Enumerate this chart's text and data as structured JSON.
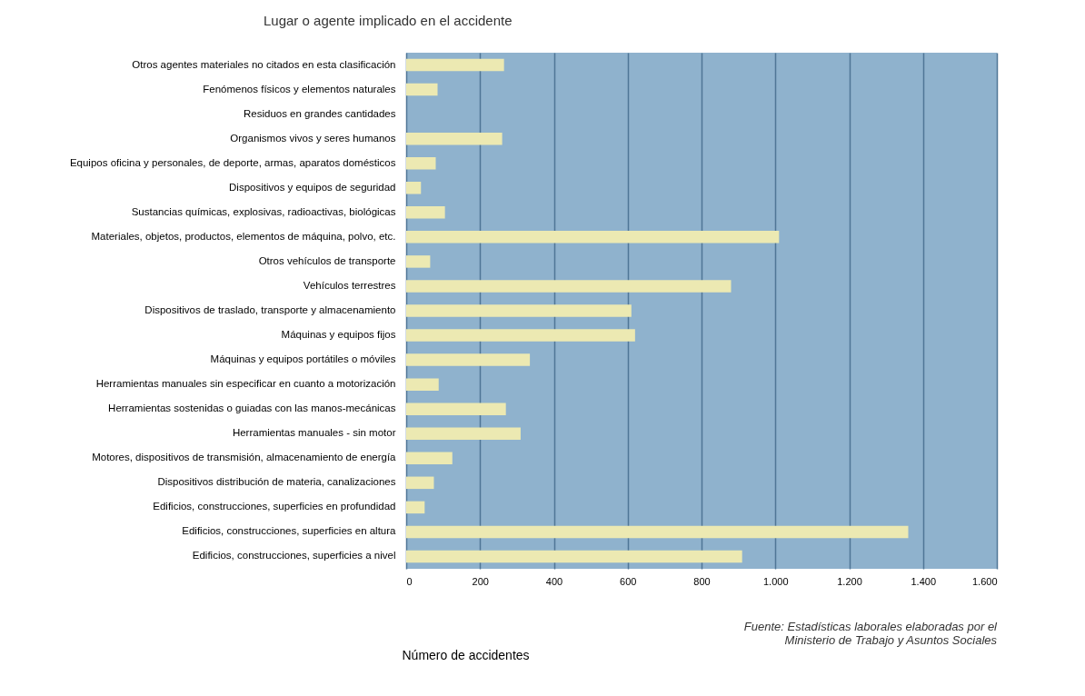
{
  "chart_data": {
    "type": "bar",
    "orientation": "horizontal",
    "title": "Lugar o agente implicado en el accidente",
    "xlabel": "Número de accidentes",
    "categories": [
      "Otros agentes materiales no citados en esta clasificación",
      "Fenómenos físicos y elementos naturales",
      "Residuos en grandes cantidades",
      "Organismos vivos y seres humanos",
      "Equipos oficina y personales, de deporte, armas, aparatos domésticos",
      "Dispositivos y equipos de seguridad",
      "Sustancias químicas, explosivas, radioactivas, biológicas",
      "Materiales, objetos, productos, elementos de máquina, polvo, etc.",
      "Otros vehículos de transporte",
      "Vehículos terrestres",
      "Dispositivos de traslado, transporte y almacenamiento",
      "Máquinas y equipos fijos",
      "Máquinas y equipos portátiles o móviles",
      "Herramientas manuales sin especificar en cuanto a motorización",
      "Herramientas sostenidas o guiadas con las manos-mecánicas",
      "Herramientas manuales - sin motor",
      "Motores, dispositivos de transmisión, almacenamiento de energía",
      "Dispositivos distribución de materia, canalizaciones",
      "Edificios, construcciones, superficies en profundidad",
      "Edificios, construcciones, superficies en altura",
      "Edificios, construcciones, superficies a nivel"
    ],
    "values": [
      265,
      85,
      null,
      260,
      80,
      40,
      105,
      1010,
      65,
      880,
      610,
      620,
      335,
      88,
      270,
      310,
      125,
      75,
      50,
      1360,
      910
    ],
    "color": "#ece9b2",
    "xlim": [
      0,
      1600
    ],
    "xticks": [
      0,
      200,
      400,
      600,
      800,
      {
        "value": 1000,
        "label": "1.000"
      },
      {
        "value": 1200,
        "label": "1.200"
      },
      {
        "value": 1400,
        "label": "1.400"
      },
      {
        "value": 1600,
        "label": "1.600"
      }
    ],
    "grid": "x",
    "annotations": [
      "Fuente: Estadísticas laborales elaboradas por el\nMinisterio de Trabajo y Asuntos Sociales"
    ]
  }
}
